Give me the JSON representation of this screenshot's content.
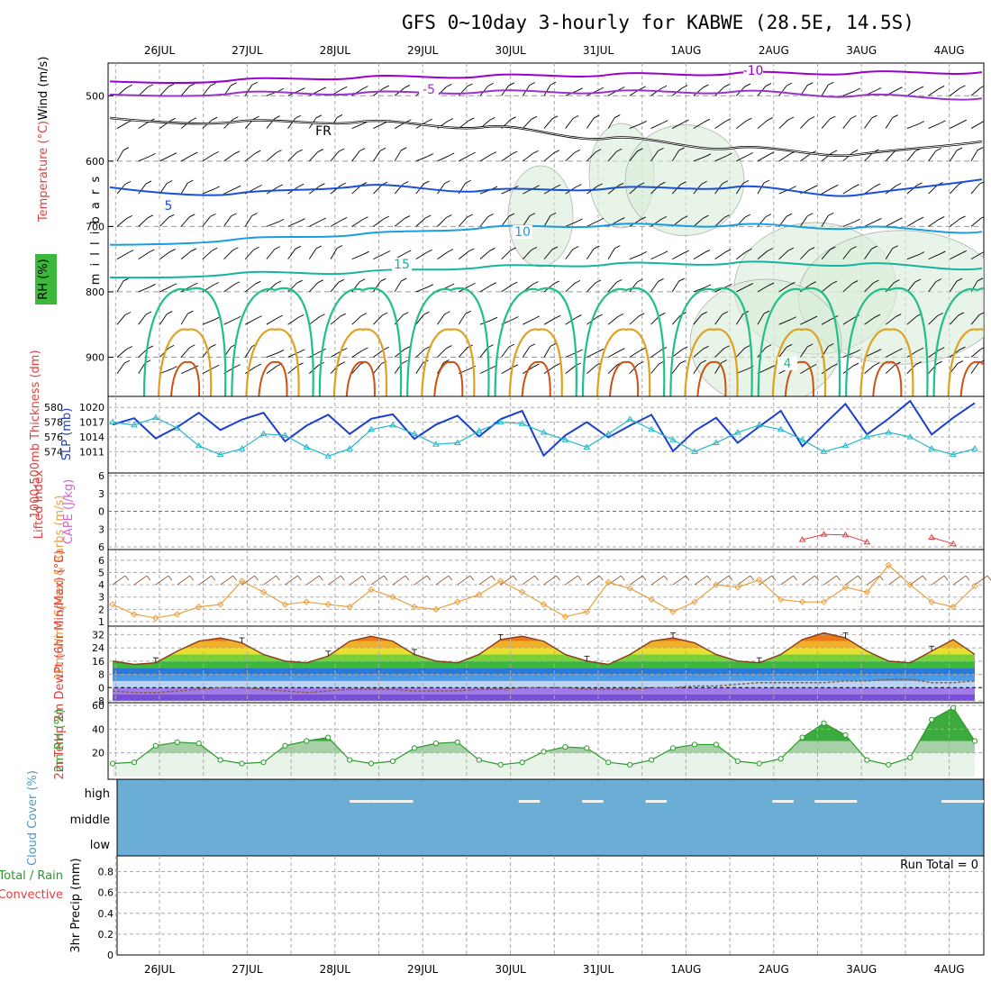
{
  "title": "GFS 0~10day 3-hourly for KABWE (28.5E, 14.5S)",
  "dates": [
    "26JUL",
    "27JUL",
    "28JUL",
    "29JUL",
    "30JUL",
    "31JUL",
    "1AUG",
    "2AUG",
    "3AUG",
    "4AUG"
  ],
  "colors": {
    "temp_minus10": "#9900cc",
    "temp_minus5": "#9933cc",
    "temp_freeze": "#000000",
    "temp_5": "#1a4fd8",
    "temp_10": "#1a9de0",
    "temp_15": "#17b3a0",
    "temp_20": "#1fbf8a",
    "temp_25": "#e0a020",
    "temp_30": "#d05010",
    "slp": "#1a3fd0",
    "thickness": "#22b8c8",
    "wind10": "#e8a040",
    "rh": "#2a9a2a",
    "cloud": "#6aaed6",
    "cape_zero": "#e04040"
  },
  "chart_data": [
    {
      "type": "contour",
      "panel": "upper-air",
      "ylabel_parts": [
        "RH (%)",
        "Temperature (°C)",
        "Wind (m/s)"
      ],
      "axis_label": "m i l l i b a r s",
      "yticks": [
        500,
        600,
        700,
        800,
        900
      ],
      "ylim": [
        960,
        450
      ],
      "contour_labels": [
        {
          "text": "-10",
          "level": -10
        },
        {
          "text": "-5",
          "level": -5
        },
        {
          "text": "FR",
          "level": 0
        },
        {
          "text": "5",
          "level": 5
        },
        {
          "text": "10",
          "level": 10
        },
        {
          "text": "15",
          "level": 15
        },
        {
          "text": "4",
          "level": 4
        }
      ],
      "levels": [
        {
          "level": -10,
          "pressure": [
            478,
            476,
            472,
            470,
            468,
            466,
            465,
            464
          ]
        },
        {
          "level": -5,
          "pressure": [
            498,
            496,
            496,
            494,
            494,
            494,
            500,
            504
          ]
        },
        {
          "level": 0,
          "pressure": [
            534,
            540,
            540,
            548,
            565,
            580,
            590,
            570
          ]
        },
        {
          "level": 5,
          "pressure": [
            640,
            650,
            638,
            645,
            642,
            640,
            652,
            628
          ]
        },
        {
          "level": 10,
          "pressure": [
            728,
            720,
            712,
            702,
            698,
            698,
            702,
            708
          ]
        },
        {
          "level": 15,
          "pressure": [
            778,
            772,
            770,
            762,
            758,
            756,
            758,
            764
          ]
        }
      ]
    },
    {
      "type": "line",
      "panel": "slp-thickness",
      "ylabel_left": "1000-500mb Thickness (dm)",
      "ylabel_right": "SLP (mb)",
      "yticks_thickness": [
        574,
        576,
        578,
        580
      ],
      "yticks_slp": [
        1011,
        1014,
        1017,
        1020
      ],
      "series": [
        {
          "name": "SLP",
          "axis": "slp",
          "values": [
            1016.5,
            1017.8,
            1013.7,
            1016,
            1018.9,
            1015.4,
            1017.5,
            1018.9,
            1013.1,
            1016.3,
            1018.5,
            1014.6,
            1017.7,
            1018.6,
            1013.6,
            1016.5,
            1018.3,
            1014.1,
            1017.6,
            1019.3,
            1010.2,
            1014.3,
            1017,
            1013.9,
            1016.3,
            1018.5,
            1011.1,
            1015.2,
            1017.9,
            1012.8,
            1016.1,
            1019.3,
            1012.1,
            1016.5,
            1020.7,
            1014.5,
            1017.7,
            1021.3,
            1014.5,
            1017.9,
            1020.9
          ]
        },
        {
          "name": "Thickness",
          "axis": "thickness",
          "values": [
            578.0,
            577.6,
            578.6,
            577.2,
            574.8,
            573.6,
            574.4,
            576.4,
            576.2,
            574.6,
            573.4,
            574.4,
            577.0,
            577.6,
            576.4,
            575.0,
            575.2,
            576.8,
            578.0,
            577.8,
            576.6,
            575.6,
            574.6,
            576.4,
            578.4,
            577.0,
            575.6,
            574.0,
            575.2,
            576.6,
            577.6,
            577.0,
            575.6,
            574.0,
            574.8,
            576.0,
            576.6,
            576.0,
            574.4,
            573.6,
            574.4
          ]
        }
      ]
    },
    {
      "type": "line",
      "panel": "cape-li",
      "ylabel_left": "Lifted Index",
      "ylabel_right": "CAPE (J/kg)",
      "yticks": [
        -6,
        -3,
        0,
        3,
        6
      ],
      "ylim": [
        -6,
        6
      ],
      "series": [
        {
          "name": "Lifted Index",
          "values": [
            null,
            null,
            null,
            null,
            null,
            null,
            null,
            null,
            null,
            null,
            null,
            null,
            null,
            null,
            null,
            null,
            null,
            null,
            null,
            null,
            null,
            null,
            null,
            null,
            null,
            null,
            null,
            null,
            null,
            null,
            null,
            null,
            4.8,
            3.9,
            4.0,
            5.2,
            null,
            null,
            4.4,
            5.5,
            null
          ]
        }
      ]
    },
    {
      "type": "line",
      "panel": "wind10m",
      "ylabel": "10m Wind Speed & Barbs (m/s)",
      "yticks": [
        1,
        2,
        3,
        4,
        5,
        6
      ],
      "ylim": [
        1,
        6.5
      ],
      "series": [
        {
          "name": "10m Wind Speed",
          "values": [
            2.4,
            1.6,
            1.3,
            1.6,
            2.2,
            2.4,
            4.3,
            3.4,
            2.4,
            2.6,
            2.4,
            2.2,
            3.6,
            3.0,
            2.2,
            2.0,
            2.6,
            3.2,
            4.3,
            3.4,
            2.4,
            1.4,
            1.8,
            4.2,
            3.7,
            2.8,
            1.8,
            2.6,
            4.0,
            3.8,
            4.4,
            2.8,
            2.6,
            2.6,
            3.8,
            3.4,
            5.6,
            4.0,
            2.6,
            2.2,
            3.9
          ]
        }
      ]
    },
    {
      "type": "area",
      "panel": "temp2m",
      "ylabel": "2m Temp 2m DewPt (6hr Min/Max) (°C)",
      "yticks": [
        -8,
        0,
        8,
        16,
        24,
        32
      ],
      "ylim": [
        -8,
        36
      ],
      "series": [
        {
          "name": "2m Temp",
          "values": [
            16,
            14,
            15,
            22,
            28,
            30,
            27,
            20,
            16,
            15,
            19,
            28,
            31,
            28,
            20,
            16,
            15,
            20,
            29,
            31,
            28,
            20,
            16,
            14,
            20,
            28,
            30,
            27,
            20,
            16,
            15,
            20,
            29,
            33,
            30,
            22,
            16,
            15,
            22,
            29,
            20
          ]
        },
        {
          "name": "2m DewPt",
          "values": [
            -2,
            -3,
            -3,
            -2,
            -1,
            0,
            0,
            -1,
            -2,
            -3,
            -2,
            -1,
            -1,
            -1,
            -2,
            -2,
            -2,
            -1,
            -1,
            0,
            0,
            0,
            -1,
            -1,
            -1,
            0,
            0,
            1,
            1,
            2,
            3,
            3,
            3,
            3,
            4,
            4,
            5,
            5,
            3,
            3,
            4
          ]
        }
      ]
    },
    {
      "type": "area",
      "panel": "rh2m",
      "ylabel": "2m RH (%)",
      "yticks": [
        20,
        40,
        60
      ],
      "ylim": [
        0,
        60
      ],
      "series": [
        {
          "name": "2m RH",
          "values": [
            11,
            12,
            26,
            29,
            28,
            14,
            11,
            12,
            26,
            30,
            33,
            14,
            11,
            13,
            24,
            28,
            29,
            14,
            10,
            12,
            21,
            25,
            24,
            12,
            10,
            14,
            24,
            27,
            27,
            13,
            11,
            15,
            33,
            45,
            35,
            14,
            10,
            16,
            48,
            58,
            30
          ]
        }
      ]
    },
    {
      "type": "heatmap",
      "panel": "cloud",
      "ylabel": "Cloud Cover (%)",
      "yticks_text": [
        "high",
        "middle",
        "low"
      ],
      "clear_high_periods": [
        11,
        12,
        13,
        19,
        22,
        25,
        31,
        33,
        34,
        39,
        40
      ]
    },
    {
      "type": "bar",
      "panel": "precip",
      "ylabel_left": "Total / Rain",
      "ylabel_left2": "Convective",
      "ylabel": "3hr Precip (mm)",
      "yticks": [
        "0",
        "0.2",
        "0.4",
        "0.6",
        "0.8"
      ],
      "ylim": [
        0,
        0.9
      ],
      "annotation": "Run Total = 0",
      "values": []
    }
  ]
}
